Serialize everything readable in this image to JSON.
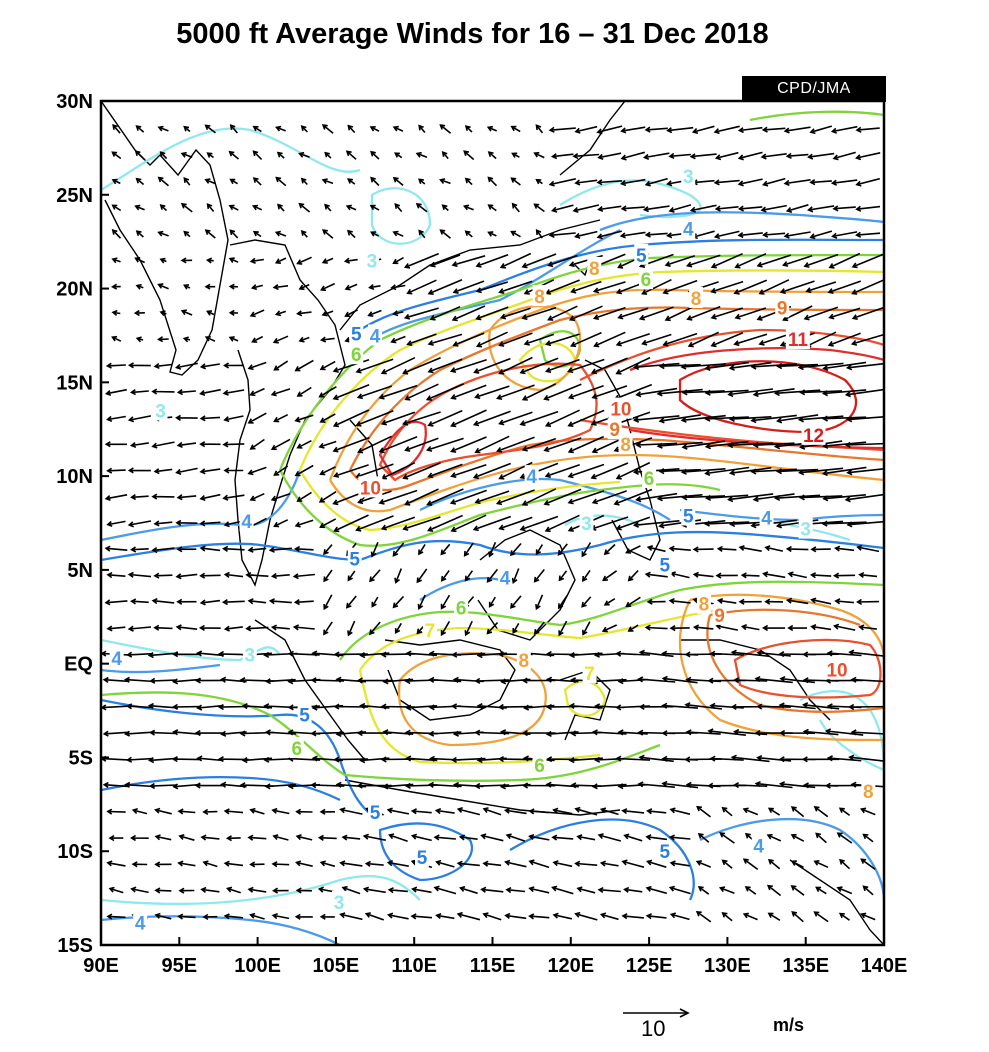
{
  "title": "5000 ft Average Winds for 16 – 31 Dec 2018",
  "credit": "CPD/JMA",
  "map": {
    "lon_range": [
      90,
      140
    ],
    "lat_range": [
      -15,
      30
    ],
    "x_ticks": [
      "90E",
      "95E",
      "100E",
      "105E",
      "110E",
      "115E",
      "120E",
      "125E",
      "130E",
      "135E",
      "140E"
    ],
    "y_ticks": [
      "30N",
      "25N",
      "20N",
      "15N",
      "10N",
      "5N",
      "EQ",
      "5S",
      "10S",
      "15S"
    ],
    "vector_reference": {
      "value": "10",
      "units": "m/s"
    },
    "contour_colors": {
      "3": "#8ee8ee",
      "4": "#4b9be8",
      "5": "#2b7fe0",
      "6": "#7fd43a",
      "7": "#e6e62e",
      "8": "#f0a23a",
      "9": "#e8772e",
      "10": "#e8502e",
      "11": "#e02e2e",
      "12": "#d81c1c"
    },
    "contour_labels": [
      {
        "text": "3",
        "color": "#8ee8ee",
        "lon": 93.8,
        "lat": 13.5
      },
      {
        "text": "3",
        "color": "#8ee8ee",
        "lon": 107.3,
        "lat": 21.5
      },
      {
        "text": "3",
        "color": "#8ee8ee",
        "lon": 127.5,
        "lat": 26.0
      },
      {
        "text": "3",
        "color": "#8ee8ee",
        "lon": 99.5,
        "lat": 0.5
      },
      {
        "text": "3",
        "color": "#8ee8ee",
        "lon": 121.0,
        "lat": 7.5
      },
      {
        "text": "3",
        "color": "#8ee8ee",
        "lon": 135.0,
        "lat": 7.2
      },
      {
        "text": "3",
        "color": "#8ee8ee",
        "lon": 105.2,
        "lat": -12.7
      },
      {
        "text": "4",
        "color": "#4b9be8",
        "lon": 107.5,
        "lat": 17.5
      },
      {
        "text": "4",
        "color": "#4b9be8",
        "lon": 127.5,
        "lat": 23.2
      },
      {
        "text": "4",
        "color": "#4b9be8",
        "lon": 99.3,
        "lat": 7.6
      },
      {
        "text": "4",
        "color": "#4b9be8",
        "lon": 117.5,
        "lat": 10.0
      },
      {
        "text": "4",
        "color": "#4b9be8",
        "lon": 115.8,
        "lat": 4.6
      },
      {
        "text": "4",
        "color": "#4b9be8",
        "lon": 132.5,
        "lat": 7.8
      },
      {
        "text": "4",
        "color": "#4b9be8",
        "lon": 91.0,
        "lat": 0.3
      },
      {
        "text": "4",
        "color": "#4b9be8",
        "lon": 132.0,
        "lat": -9.7
      },
      {
        "text": "4",
        "color": "#4b9be8",
        "lon": 92.5,
        "lat": -13.8
      },
      {
        "text": "5",
        "color": "#2b7fe0",
        "lon": 106.3,
        "lat": 17.6
      },
      {
        "text": "5",
        "color": "#2b7fe0",
        "lon": 124.5,
        "lat": 21.8
      },
      {
        "text": "5",
        "color": "#2b7fe0",
        "lon": 127.5,
        "lat": 7.9
      },
      {
        "text": "5",
        "color": "#2b7fe0",
        "lon": 106.2,
        "lat": 5.6
      },
      {
        "text": "5",
        "color": "#2b7fe0",
        "lon": 126.0,
        "lat": 5.3
      },
      {
        "text": "5",
        "color": "#2b7fe0",
        "lon": 103.0,
        "lat": -2.7
      },
      {
        "text": "5",
        "color": "#2b7fe0",
        "lon": 107.5,
        "lat": -7.9
      },
      {
        "text": "5",
        "color": "#2b7fe0",
        "lon": 110.5,
        "lat": -10.3
      },
      {
        "text": "5",
        "color": "#2b7fe0",
        "lon": 126.0,
        "lat": -10.0
      },
      {
        "text": "6",
        "color": "#7fd43a",
        "lon": 106.3,
        "lat": 16.5
      },
      {
        "text": "6",
        "color": "#7fd43a",
        "lon": 124.8,
        "lat": 20.5
      },
      {
        "text": "6",
        "color": "#7fd43a",
        "lon": 125.0,
        "lat": 9.9
      },
      {
        "text": "6",
        "color": "#7fd43a",
        "lon": 113.0,
        "lat": 3.0
      },
      {
        "text": "6",
        "color": "#7fd43a",
        "lon": 102.5,
        "lat": -4.5
      },
      {
        "text": "6",
        "color": "#7fd43a",
        "lon": 118.0,
        "lat": -5.4
      },
      {
        "text": "7",
        "color": "#e6e62e",
        "lon": 111.0,
        "lat": 1.8
      },
      {
        "text": "7",
        "color": "#e6e62e",
        "lon": 121.2,
        "lat": -0.5
      },
      {
        "text": "8",
        "color": "#f0a23a",
        "lon": 118.0,
        "lat": 19.6
      },
      {
        "text": "8",
        "color": "#f0a23a",
        "lon": 121.5,
        "lat": 21.1
      },
      {
        "text": "8",
        "color": "#f0a23a",
        "lon": 128.0,
        "lat": 19.5
      },
      {
        "text": "8",
        "color": "#f0a23a",
        "lon": 123.5,
        "lat": 11.7
      },
      {
        "text": "8",
        "color": "#f0a23a",
        "lon": 128.5,
        "lat": 3.2
      },
      {
        "text": "8",
        "color": "#f0a23a",
        "lon": 117.0,
        "lat": 0.2
      },
      {
        "text": "8",
        "color": "#f0a23a",
        "lon": 139.0,
        "lat": -6.8
      },
      {
        "text": "9",
        "color": "#e8772e",
        "lon": 133.5,
        "lat": 19.0
      },
      {
        "text": "9",
        "color": "#e8772e",
        "lon": 122.8,
        "lat": 12.5
      },
      {
        "text": "9",
        "color": "#e8772e",
        "lon": 129.5,
        "lat": 2.6
      },
      {
        "text": "10",
        "color": "#e8502e",
        "lon": 123.2,
        "lat": 13.6
      },
      {
        "text": "10",
        "color": "#e8502e",
        "lon": 107.2,
        "lat": 9.4
      },
      {
        "text": "10",
        "color": "#e8502e",
        "lon": 137.0,
        "lat": -0.3
      },
      {
        "text": "11",
        "color": "#e02e2e",
        "lon": 134.5,
        "lat": 17.3
      },
      {
        "text": "12",
        "color": "#d81c1c",
        "lon": 135.5,
        "lat": 12.2
      }
    ]
  }
}
